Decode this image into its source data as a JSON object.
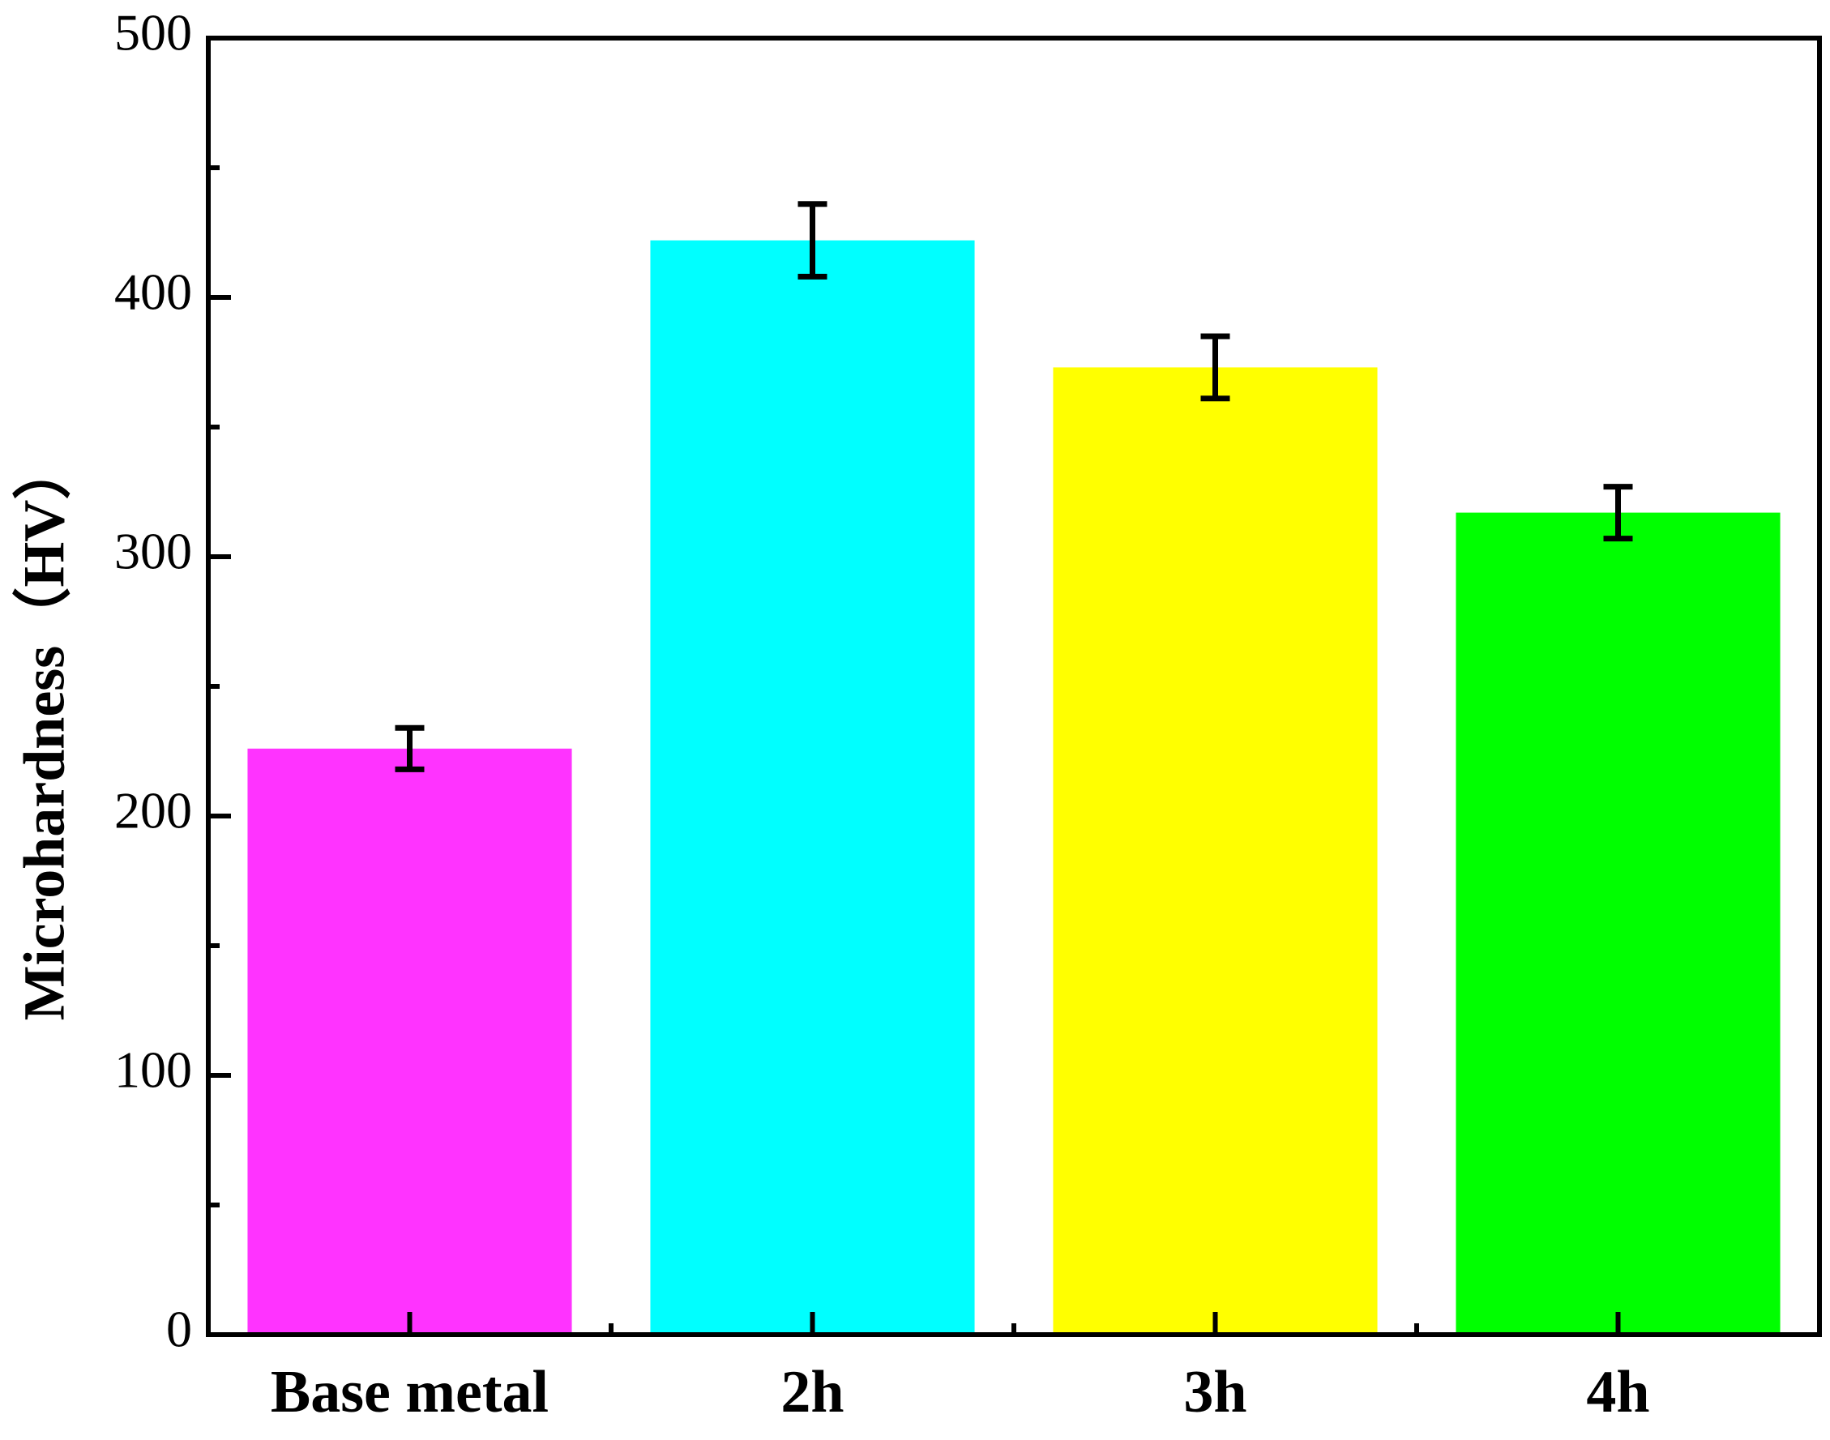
{
  "chart_data": {
    "type": "bar",
    "title": "",
    "xlabel": "",
    "ylabel": "Microhardness（HV）",
    "categories": [
      "Base metal",
      "2h",
      "3h",
      "4h"
    ],
    "values": [
      226,
      422,
      373,
      317
    ],
    "errors": [
      8,
      14,
      12,
      10
    ],
    "colors": [
      "#FF33FF",
      "#00FFFF",
      "#FFFF00",
      "#00FF00"
    ],
    "ylim": [
      0,
      500
    ],
    "yticks": [
      0,
      100,
      200,
      300,
      400,
      500
    ],
    "yticks_minor": [
      50,
      150,
      250,
      350,
      450
    ],
    "grid": false,
    "legend": "none"
  }
}
